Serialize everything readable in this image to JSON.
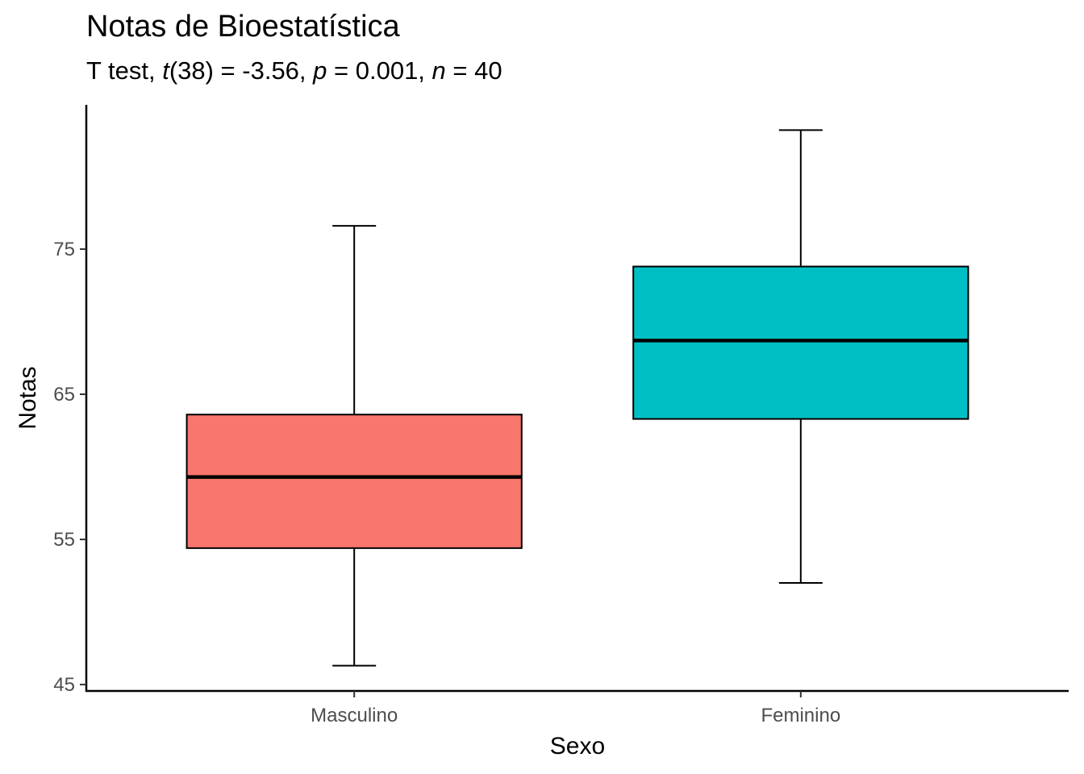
{
  "chart_data": {
    "type": "boxplot",
    "title": "Notas de Bioestatística",
    "subtitle_parts": [
      {
        "text": "T test, ",
        "italic": false
      },
      {
        "text": "t",
        "italic": true
      },
      {
        "text": "(38) = -3.56, ",
        "italic": false
      },
      {
        "text": "p",
        "italic": true
      },
      {
        "text": " = 0.001, ",
        "italic": false
      },
      {
        "text": "n",
        "italic": true
      },
      {
        "text": " = 40",
        "italic": false
      }
    ],
    "xlabel": "Sexo",
    "ylabel": "Notas",
    "categories": [
      "Masculino",
      "Feminino"
    ],
    "colors": [
      "#F8766D",
      "#00BFC4"
    ],
    "boxes": [
      {
        "category": "Masculino",
        "whisker_low": 46.3,
        "q1": 54.4,
        "median": 59.3,
        "q3": 63.6,
        "whisker_high": 76.6
      },
      {
        "category": "Feminino",
        "whisker_low": 52.0,
        "q1": 63.3,
        "median": 68.7,
        "q3": 73.8,
        "whisker_high": 83.2
      }
    ],
    "yticks": [
      45,
      55,
      65,
      75
    ],
    "ylim": [
      44.56,
      84.94
    ],
    "xlim": [
      0.4,
      2.6
    ],
    "grid": false,
    "legend": "none"
  }
}
